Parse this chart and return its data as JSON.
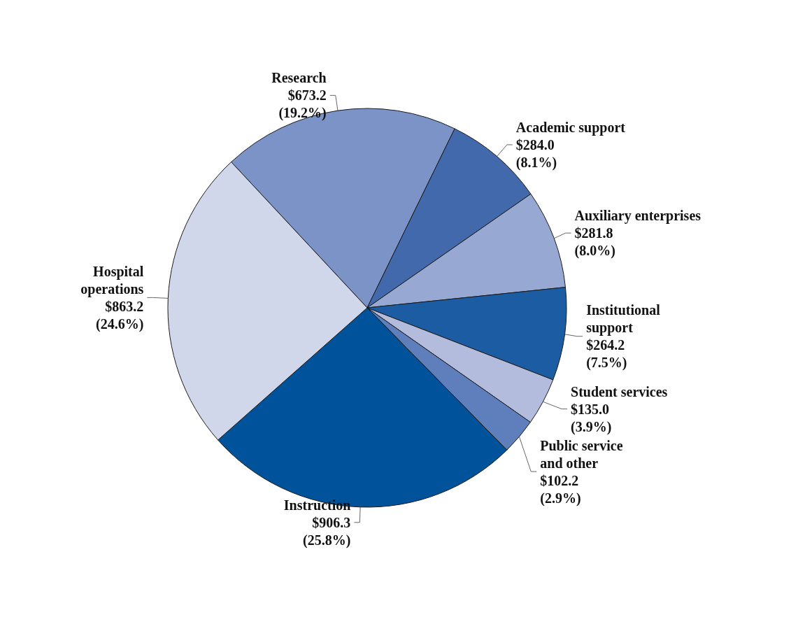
{
  "chart_data": {
    "type": "pie",
    "categories": [
      "Research",
      "Academic support",
      "Auxiliary enterprises",
      "Institutional\nsupport",
      "Student services",
      "Public service\nand other",
      "Instruction",
      "Hospital\noperations"
    ],
    "values": [
      673.2,
      284.0,
      281.8,
      264.2,
      135.0,
      102.2,
      906.3,
      863.2
    ],
    "value_labels": [
      "$673.2\n(19.2%)",
      "$284.0\n(8.1%)",
      "$281.8\n(8.0%)",
      "$264.2\n(7.5%)",
      "$135.0\n(3.9%)",
      "$102.2\n(2.9%)",
      "$906.3\n(25.8%)",
      "$863.2\n(24.6%)"
    ],
    "colors": [
      "#7b93c6",
      "#4169ab",
      "#97a9d2",
      "#1c5ca3",
      "#b3bcdd",
      "#5e7fbb",
      "#00529b",
      "#d0d7ea"
    ]
  }
}
